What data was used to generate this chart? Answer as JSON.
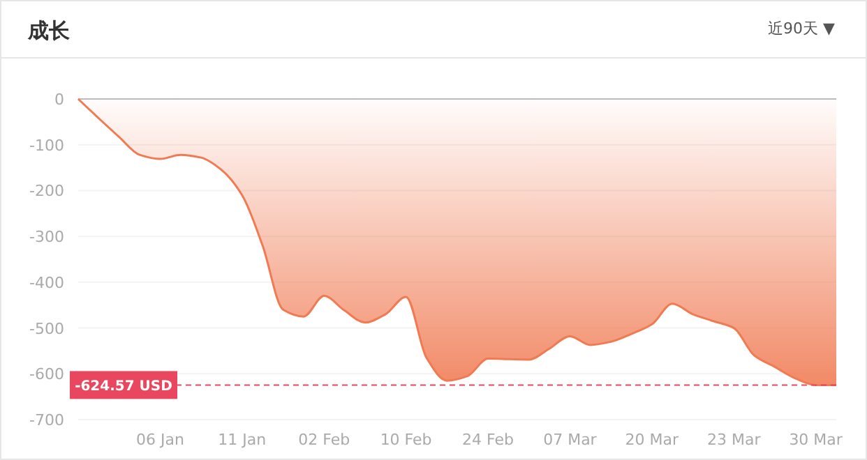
{
  "chart_data": {
    "type": "area",
    "title": "成长",
    "annotations": [
      "近90天 ▼"
    ],
    "categories": [
      null,
      null,
      null,
      null,
      "06 Jan",
      null,
      null,
      null,
      "11 Jan",
      null,
      null,
      null,
      "02 Feb",
      null,
      null,
      null,
      "10 Feb",
      null,
      null,
      null,
      "24 Feb",
      null,
      null,
      null,
      "07 Mar",
      null,
      null,
      null,
      "20 Mar",
      null,
      null,
      null,
      "23 Mar",
      null,
      null,
      null,
      "30 Mar",
      null
    ],
    "series": [
      {
        "color": "#f07a52",
        "values": [
          0,
          -42,
          -83,
          -122,
          -131,
          -122,
          -128,
          -155,
          -210,
          -320,
          -460,
          -475,
          -430,
          -462,
          -488,
          -470,
          -432,
          -565,
          -615,
          -605,
          -567,
          -568,
          -569,
          -545,
          -518,
          -537,
          -530,
          -513,
          -492,
          -447,
          -470,
          -485,
          -500,
          -560,
          -585,
          -610,
          -624.57,
          -624.57
        ]
      }
    ],
    "ylim": [
      -700,
      0
    ],
    "yticks": [
      0,
      -100,
      -200,
      -300,
      -400,
      -500,
      -600,
      -700
    ],
    "grid": "y",
    "ref_lines": [
      {
        "axis": "y",
        "value": -624.57,
        "label": "-624.57 USD",
        "color": "#e8475f",
        "line_style": "dashed"
      }
    ]
  }
}
